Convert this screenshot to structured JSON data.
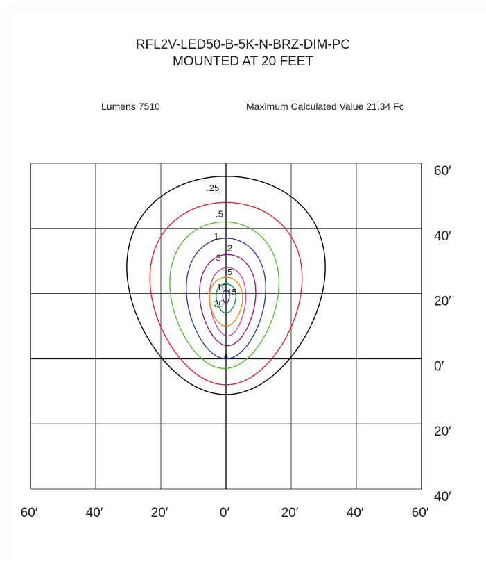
{
  "title_line1": "RFL2V-LED50-B-5K-N-BRZ-DIM-PC",
  "title_line2": "MOUNTED AT 20 FEET",
  "lumens_text": "Lumens 7510",
  "max_text": "Maximum Calculated Value 21.34 Fc",
  "chart_data": {
    "type": "isofootcandle contour",
    "title": "RFL2V-LED50-B-5K-N-BRZ-DIM-PC MOUNTED AT 20 FEET",
    "x_range_ft": [
      -60,
      60
    ],
    "y_range_ft": [
      -40,
      60
    ],
    "grid_step_ft": 20,
    "grid": true,
    "x_tick_labels": [
      "60′",
      "40′",
      "20′",
      "0′",
      "20′",
      "40′",
      "60′"
    ],
    "y_tick_labels": [
      "60′",
      "40′",
      "20′",
      "0′",
      "20′",
      "40′"
    ],
    "y_tick_values": [
      60,
      40,
      20,
      0,
      -20,
      -40
    ],
    "fixture_position_ft": [
      0,
      0
    ],
    "max_value_fc": 21.34,
    "lumens": 7510,
    "contours": [
      {
        "label": ".25",
        "fc": 0.25,
        "color": "#000000",
        "x_ft": [
          -30,
          30
        ],
        "y_ft": [
          -11,
          56
        ]
      },
      {
        "label": ".5",
        "fc": 0.5,
        "color": "#e8202a",
        "x_ft": [
          -23,
          23
        ],
        "y_ft": [
          -8,
          48
        ]
      },
      {
        "label": "1",
        "fc": 1,
        "color": "#5bb83a",
        "x_ft": [
          -17,
          16
        ],
        "y_ft": [
          -3,
          42
        ]
      },
      {
        "label": "2",
        "fc": 2,
        "color": "#2e3f9e",
        "x_ft": [
          -12,
          12
        ],
        "y_ft": [
          0,
          37
        ]
      },
      {
        "label": "3",
        "fc": 3,
        "color": "#8c1a7a",
        "x_ft": [
          -8,
          9
        ],
        "y_ft": [
          4,
          32
        ]
      },
      {
        "label": "5",
        "fc": 5,
        "color": "#c24ab0",
        "x_ft": [
          -5,
          6
        ],
        "y_ft": [
          7,
          28
        ]
      },
      {
        "label": "10",
        "fc": 10,
        "color": "#f08c1e",
        "x_ft": [
          -5,
          5
        ],
        "y_ft": [
          10,
          25
        ]
      },
      {
        "label": "15",
        "fc": 15,
        "color": "#148a48",
        "x_ft": [
          -3,
          3
        ],
        "y_ft": [
          14,
          23
        ]
      },
      {
        "label": "20",
        "fc": 20,
        "color": "#2d3a9a",
        "x_ft": [
          -1,
          1
        ],
        "y_ft": [
          17,
          21
        ]
      }
    ]
  }
}
